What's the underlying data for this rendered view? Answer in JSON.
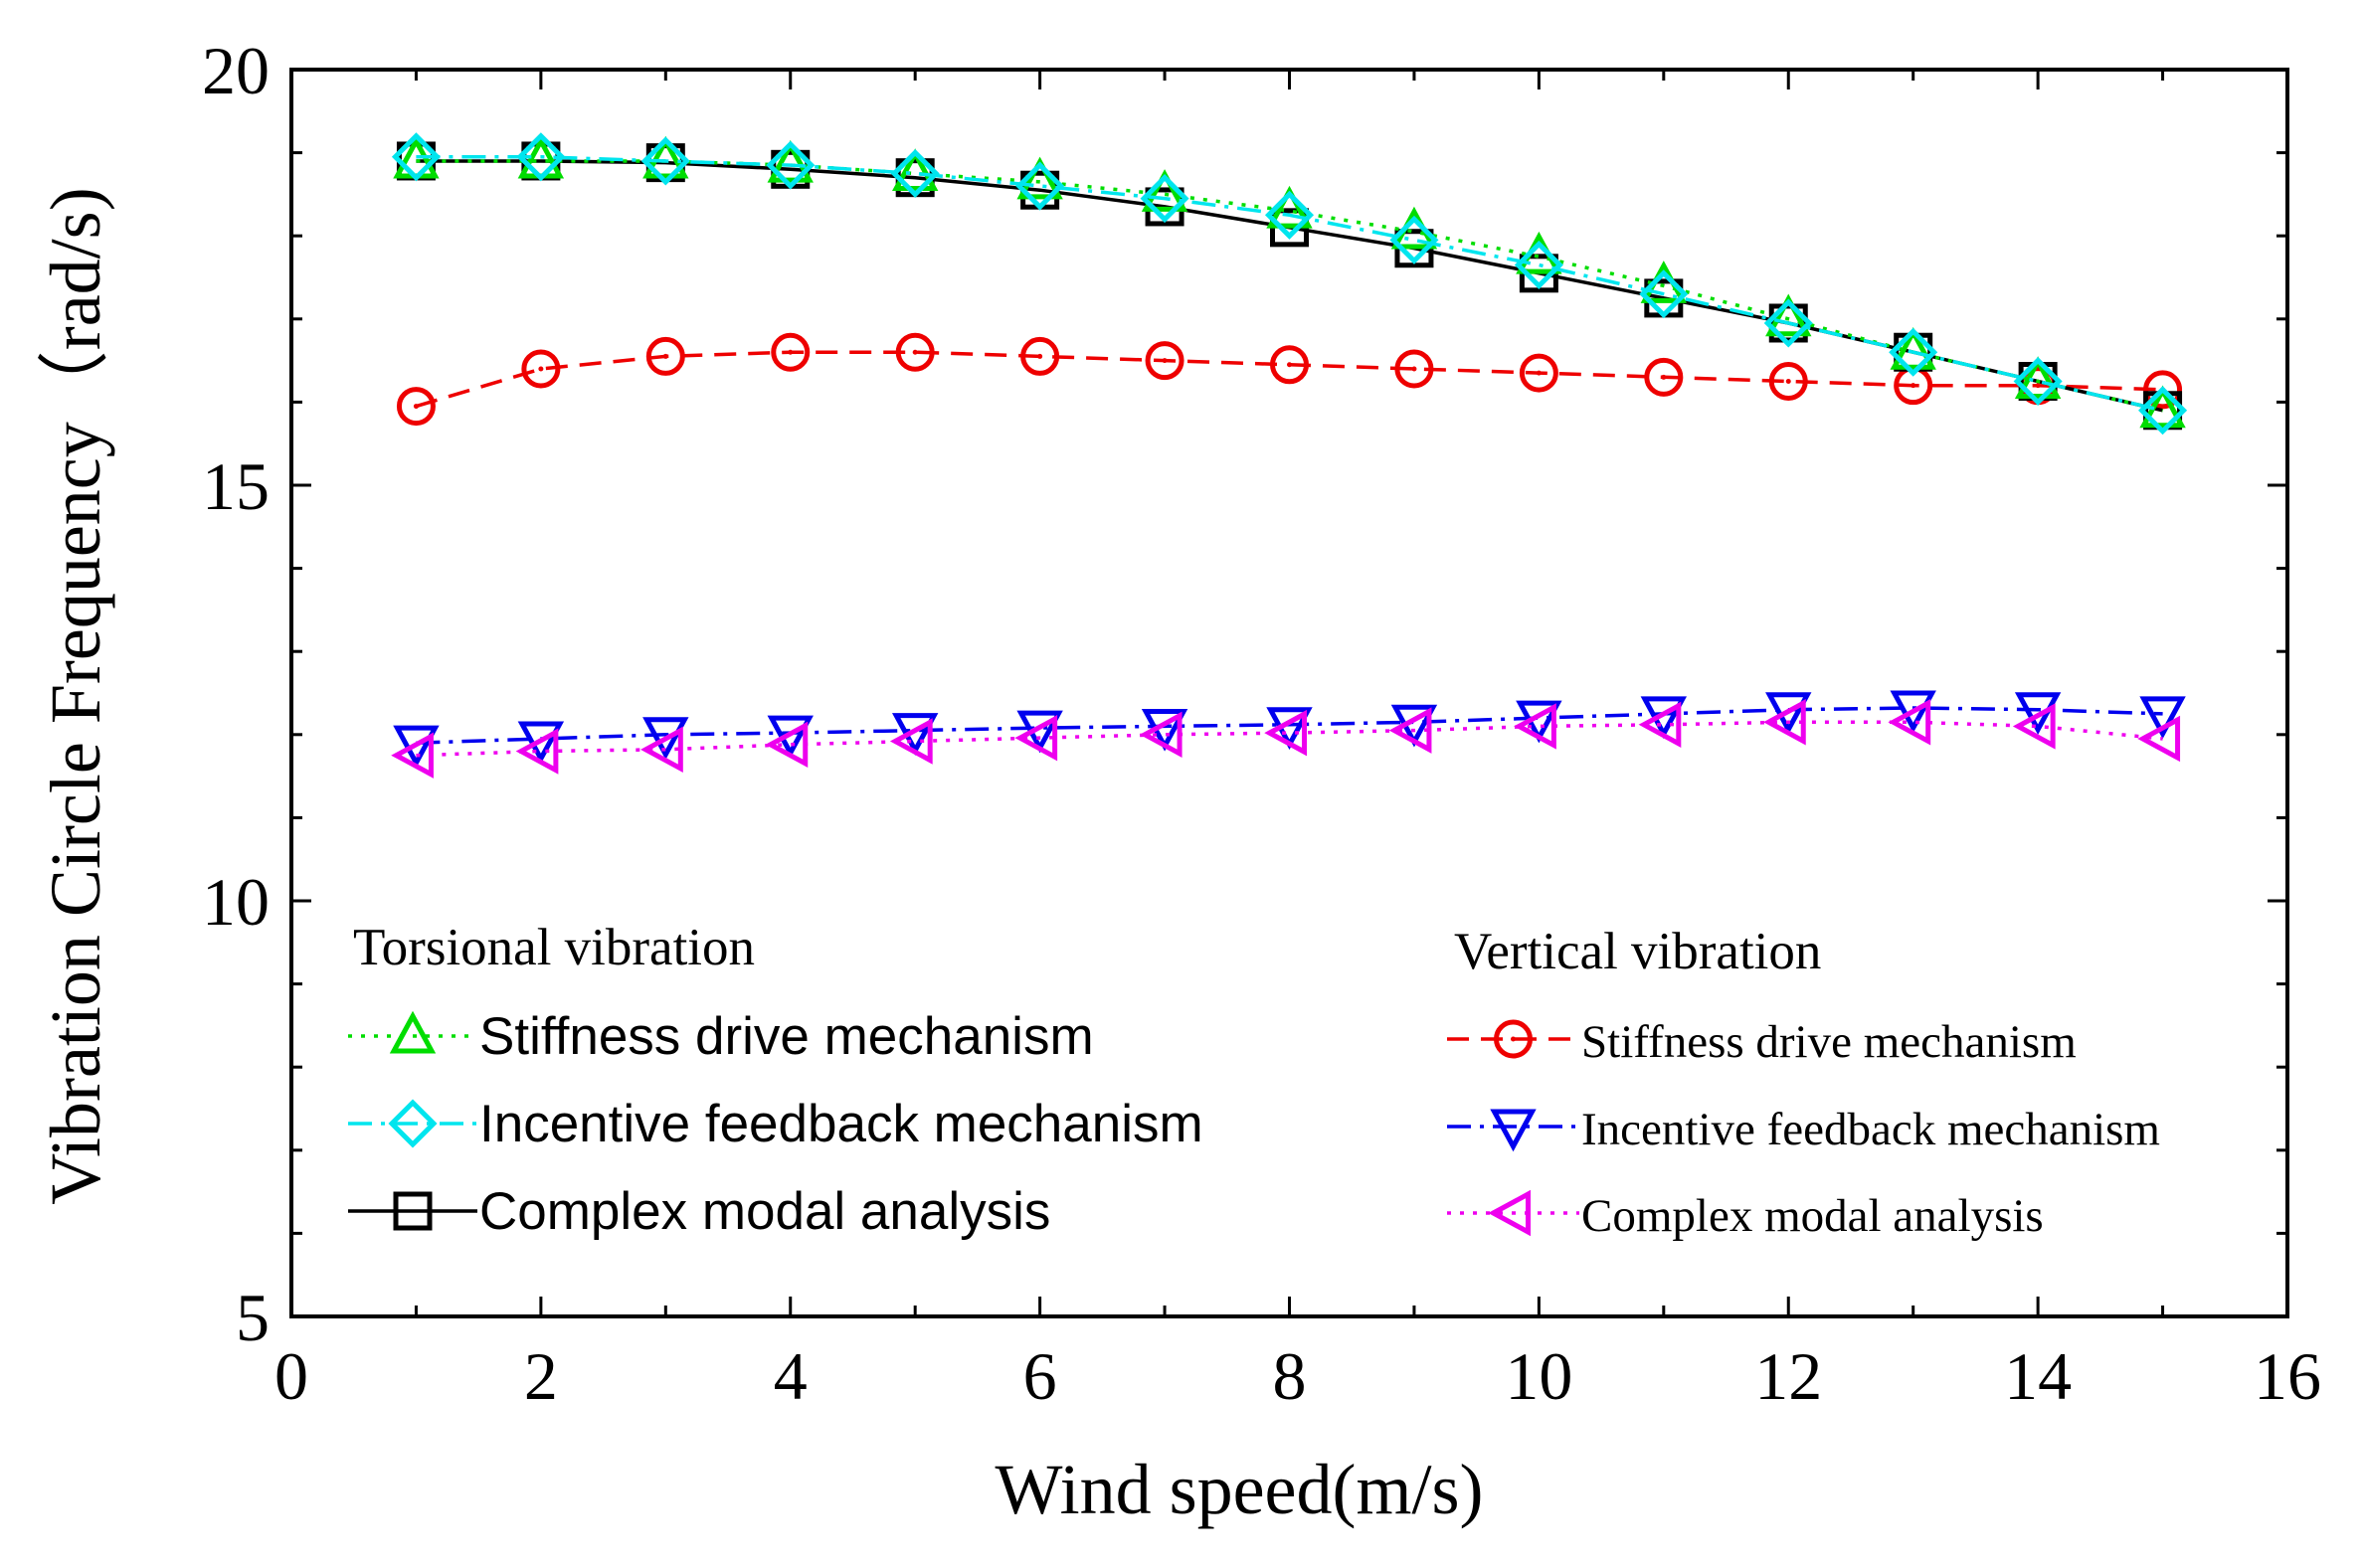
{
  "chart_data": {
    "type": "line",
    "title": "",
    "xlabel": "Wind speed(m/s)",
    "ylabel": "Vibration Circle Frequency（rad/s)",
    "xlim": [
      0,
      16
    ],
    "ylim": [
      5,
      20
    ],
    "xticks": [
      0,
      2,
      4,
      6,
      8,
      10,
      12,
      14,
      16
    ],
    "yticks": [
      5,
      10,
      15,
      20
    ],
    "grid": false,
    "x": [
      1,
      2,
      3,
      4,
      5,
      6,
      7,
      8,
      9,
      10,
      11,
      12,
      13,
      14,
      15
    ],
    "legend_groups": [
      {
        "heading": "Torsional vibration",
        "position": "bottom-left"
      },
      {
        "heading": "Vertical vibration",
        "position": "bottom-right"
      }
    ],
    "series": [
      {
        "name": "Stiffness drive mechanism",
        "group": "Torsional vibration",
        "color": "#00dd00",
        "marker": "triangle-up",
        "line": "dotted",
        "values": [
          18.9,
          18.9,
          18.9,
          18.85,
          18.75,
          18.65,
          18.5,
          18.3,
          18.05,
          17.75,
          17.4,
          17.0,
          16.6,
          16.25,
          15.9
        ]
      },
      {
        "name": "Incentive feedback mechanism",
        "group": "Torsional vibration",
        "color": "#00e5ee",
        "marker": "diamond",
        "line": "dashdot",
        "values": [
          18.95,
          18.95,
          18.9,
          18.85,
          18.75,
          18.6,
          18.45,
          18.25,
          17.95,
          17.65,
          17.3,
          16.95,
          16.6,
          16.25,
          15.9
        ]
      },
      {
        "name": "Complex modal analysis",
        "group": "Torsional vibration",
        "color": "#000000",
        "marker": "square",
        "line": "solid",
        "values": [
          18.9,
          18.9,
          18.88,
          18.8,
          18.7,
          18.55,
          18.35,
          18.1,
          17.85,
          17.55,
          17.25,
          16.95,
          16.6,
          16.25,
          15.9
        ]
      },
      {
        "name": "Stiffness drive mechanism",
        "group": "Vertical vibration",
        "color": "#ee0000",
        "marker": "circle",
        "line": "dashed",
        "values": [
          15.95,
          16.4,
          16.55,
          16.6,
          16.6,
          16.55,
          16.5,
          16.45,
          16.4,
          16.35,
          16.3,
          16.25,
          16.2,
          16.2,
          16.15
        ]
      },
      {
        "name": "Incentive feedback mechanism",
        "group": "Vertical vibration",
        "color": "#0000ee",
        "marker": "triangle-down",
        "line": "dashdot",
        "values": [
          11.9,
          11.95,
          12.0,
          12.02,
          12.05,
          12.08,
          12.1,
          12.12,
          12.15,
          12.2,
          12.25,
          12.3,
          12.32,
          12.3,
          12.25
        ]
      },
      {
        "name": "Complex modal analysis",
        "group": "Vertical vibration",
        "color": "#ee00ee",
        "marker": "triangle-left",
        "line": "dotted",
        "values": [
          11.75,
          11.8,
          11.82,
          11.88,
          11.92,
          11.96,
          12.0,
          12.02,
          12.05,
          12.1,
          12.12,
          12.15,
          12.15,
          12.1,
          11.95
        ]
      }
    ]
  }
}
